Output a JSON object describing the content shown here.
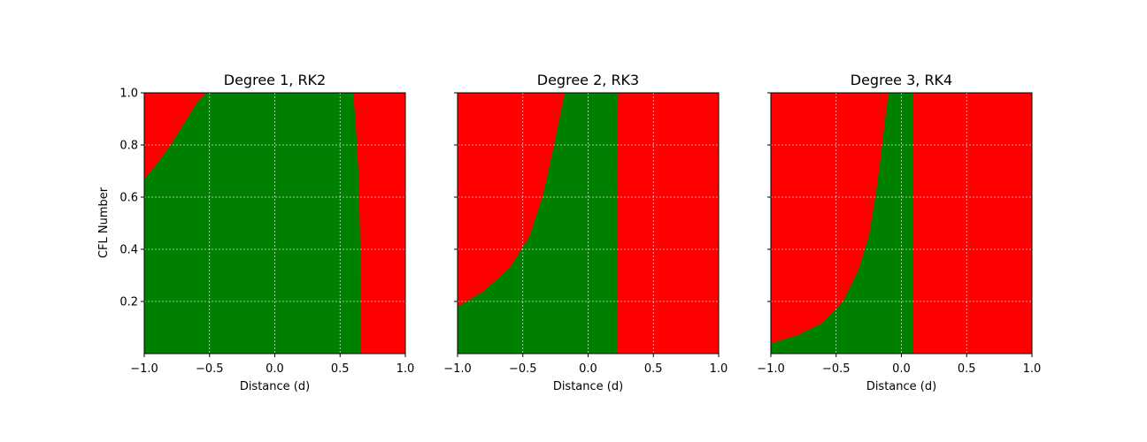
{
  "figure": {
    "ylabel": "CFL Number",
    "xlabel": "Distance (d)"
  },
  "colors": {
    "stable": "#008000",
    "unstable": "#ff0000",
    "grid": "#ffffff"
  },
  "chart_data": [
    {
      "type": "heatmap",
      "title": "Degree 1, RK2",
      "xlabel": "Distance (d)",
      "ylabel": "CFL Number",
      "xlim": [
        -1.0,
        1.0
      ],
      "ylim": [
        0.0,
        1.0
      ],
      "xticks": [
        "−1.0",
        "−0.5",
        "0.0",
        "0.5",
        "1.0"
      ],
      "xtick_values": [
        -1.0,
        -0.5,
        0.0,
        0.5,
        1.0
      ],
      "yticks": [
        "0.2",
        "0.4",
        "0.6",
        "0.8",
        "1.0"
      ],
      "ytick_values": [
        0.2,
        0.4,
        0.6,
        0.8,
        1.0
      ],
      "grid": true,
      "regions": [
        {
          "name": "unstable-left",
          "color": "unstable",
          "boundary": [
            [
              -1.0,
              0.67
            ],
            [
              -0.9,
              0.73
            ],
            [
              -0.8,
              0.8
            ],
            [
              -0.7,
              0.88
            ],
            [
              -0.6,
              0.96
            ],
            [
              -0.53,
              1.0
            ]
          ]
        },
        {
          "name": "unstable-right",
          "color": "unstable",
          "boundary": [
            [
              0.6,
              1.0
            ],
            [
              0.62,
              0.88
            ],
            [
              0.64,
              0.7
            ],
            [
              0.65,
              0.5
            ],
            [
              0.66,
              0.3
            ],
            [
              0.66,
              0.0
            ]
          ]
        }
      ]
    },
    {
      "type": "heatmap",
      "title": "Degree 2, RK3",
      "xlabel": "Distance (d)",
      "xlim": [
        -1.0,
        1.0
      ],
      "ylim": [
        0.0,
        1.0
      ],
      "xticks": [
        "−1.0",
        "−0.5",
        "0.0",
        "0.5",
        "1.0"
      ],
      "xtick_values": [
        -1.0,
        -0.5,
        0.0,
        0.5,
        1.0
      ],
      "ytick_values": [
        0.2,
        0.4,
        0.6,
        0.8,
        1.0
      ],
      "grid": true,
      "regions": [
        {
          "name": "unstable-left",
          "color": "unstable",
          "boundary": [
            [
              -1.0,
              0.18
            ],
            [
              -0.8,
              0.24
            ],
            [
              -0.6,
              0.33
            ],
            [
              -0.45,
              0.45
            ],
            [
              -0.35,
              0.6
            ],
            [
              -0.27,
              0.78
            ],
            [
              -0.22,
              0.9
            ],
            [
              -0.18,
              1.0
            ]
          ]
        },
        {
          "name": "unstable-right",
          "color": "unstable",
          "boundary": [
            [
              0.23,
              1.0
            ],
            [
              0.22,
              0.75
            ],
            [
              0.22,
              0.0
            ]
          ]
        }
      ]
    },
    {
      "type": "heatmap",
      "title": "Degree 3, RK4",
      "xlabel": "Distance (d)",
      "xlim": [
        -1.0,
        1.0
      ],
      "ylim": [
        0.0,
        1.0
      ],
      "xticks": [
        "−1.0",
        "−0.5",
        "0.0",
        "0.5",
        "1.0"
      ],
      "xtick_values": [
        -1.0,
        -0.5,
        0.0,
        0.5,
        1.0
      ],
      "ytick_values": [
        0.2,
        0.4,
        0.6,
        0.8,
        1.0
      ],
      "grid": true,
      "regions": [
        {
          "name": "unstable-left",
          "color": "unstable",
          "boundary": [
            [
              -1.0,
              0.04
            ],
            [
              -0.8,
              0.07
            ],
            [
              -0.6,
              0.12
            ],
            [
              -0.45,
              0.2
            ],
            [
              -0.33,
              0.32
            ],
            [
              -0.25,
              0.45
            ],
            [
              -0.2,
              0.6
            ],
            [
              -0.16,
              0.75
            ],
            [
              -0.13,
              0.88
            ],
            [
              -0.1,
              1.0
            ]
          ]
        },
        {
          "name": "unstable-right",
          "color": "unstable",
          "boundary": [
            [
              0.09,
              1.0
            ],
            [
              0.09,
              0.0
            ]
          ]
        }
      ]
    }
  ]
}
